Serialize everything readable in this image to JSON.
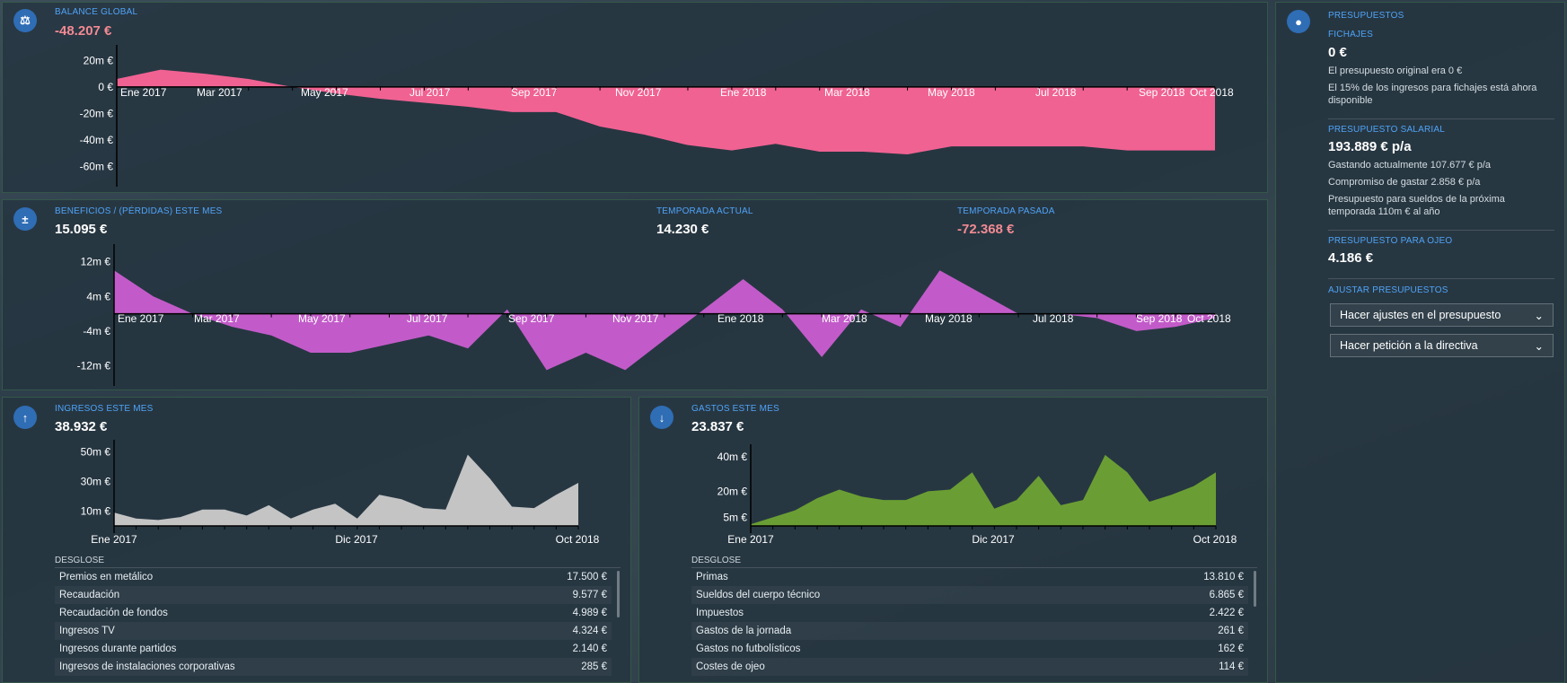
{
  "balance": {
    "caption": "BALANCE GLOBAL",
    "value": "-48.207 €",
    "y_labels": [
      "20m €",
      "0 €",
      "-20m €",
      "-40m €",
      "-60m €"
    ],
    "x_labels": [
      "Ene 2017",
      "Mar 2017",
      "May 2017",
      "Jul 2017",
      "Sep 2017",
      "Nov 2017",
      "Ene 2018",
      "Mar 2018",
      "May 2018",
      "Jul 2018",
      "Sep 2018",
      "Oct 2018"
    ]
  },
  "profit": {
    "caption": "BENEFICIOS / (PÉRDIDAS) ESTE MES",
    "value": "15.095 €",
    "current_caption": "TEMPORADA ACTUAL",
    "current_value": "14.230 €",
    "last_caption": "TEMPORADA PASADA",
    "last_value": "-72.368 €",
    "y_labels": [
      "12m €",
      "4m €",
      "-4m €",
      "-12m €"
    ],
    "x_labels": [
      "Ene 2017",
      "Mar 2017",
      "May 2017",
      "Jul 2017",
      "Sep 2017",
      "Nov 2017",
      "Ene 2018",
      "Mar 2018",
      "May 2018",
      "Jul 2018",
      "Sep 2018",
      "Oct 2018"
    ]
  },
  "income": {
    "caption": "INGRESOS ESTE MES",
    "value": "38.932 €",
    "y_labels": [
      "50m €",
      "30m €",
      "10m €"
    ],
    "x_labels": [
      "Ene 2017",
      "Dic 2017",
      "Oct 2018"
    ],
    "breakdown_title": "DESGLOSE",
    "rows": [
      {
        "label": "Premios en metálico",
        "value": "17.500 €"
      },
      {
        "label": "Recaudación",
        "value": "9.577 €"
      },
      {
        "label": "Recaudación de fondos",
        "value": "4.989 €"
      },
      {
        "label": "Ingresos TV",
        "value": "4.324 €"
      },
      {
        "label": "Ingresos durante partidos",
        "value": "2.140 €"
      },
      {
        "label": "Ingresos de instalaciones corporativas",
        "value": "285 €"
      }
    ]
  },
  "expenses": {
    "caption": "GASTOS ESTE MES",
    "value": "23.837 €",
    "y_labels": [
      "40m €",
      "20m €",
      "5m €"
    ],
    "x_labels": [
      "Ene 2017",
      "Dic 2017",
      "Oct 2018"
    ],
    "breakdown_title": "DESGLOSE",
    "rows": [
      {
        "label": "Primas",
        "value": "13.810 €"
      },
      {
        "label": "Sueldos del cuerpo técnico",
        "value": "6.865 €"
      },
      {
        "label": "Impuestos",
        "value": "2.422 €"
      },
      {
        "label": "Gastos de la jornada",
        "value": "261 €"
      },
      {
        "label": "Gastos no futbolísticos",
        "value": "162 €"
      },
      {
        "label": "Costes de ojeo",
        "value": "114 €"
      }
    ]
  },
  "budgets": {
    "caption": "PRESUPUESTOS",
    "transfers_caption": "FICHAJES",
    "transfers_value": "0 €",
    "transfers_note1": "El presupuesto original era 0 €",
    "transfers_note2": "El 15% de los ingresos para fichajes está ahora disponible",
    "wage_caption": "PRESUPUESTO SALARIAL",
    "wage_value": "193.889 € p/a",
    "wage_note1": "Gastando actualmente 107.677 € p/a",
    "wage_note2": "Compromiso de gastar 2.858 € p/a",
    "wage_note3": "Presupuesto para sueldos de la próxima temporada 110m € al año",
    "scout_caption": "PRESUPUESTO PARA OJEO",
    "scout_value": "4.186 €",
    "adjust_caption": "AJUSTAR PRESUPUESTOS",
    "dropdown1": "Hacer ajustes en el presupuesto",
    "dropdown2": "Hacer petición a la directiva"
  },
  "colors": {
    "balance_fill": "#f06292",
    "profit_fill": "#c25bc9",
    "income_fill": "#c4c4c4",
    "expenses_fill": "#6a9e34",
    "accent": "#4fa3f7",
    "negative": "#f28a93"
  },
  "chart_data": [
    {
      "type": "area",
      "name": "balance-chart",
      "title": "BALANCE GLOBAL",
      "x_range": [
        "Ene 2017",
        "Oct 2018"
      ],
      "ylim": [
        -70,
        25
      ],
      "y_unit": "m €",
      "values": [
        6,
        13,
        10,
        6,
        0,
        -5,
        -9,
        -12,
        -15,
        -19,
        -19,
        -30,
        -36,
        -44,
        -48,
        -43,
        -49,
        -49,
        -51,
        -45,
        -45,
        -45,
        -45,
        -48,
        -48,
        -48
      ]
    },
    {
      "type": "area",
      "name": "profit-chart",
      "title": "BENEFICIOS / (PÉRDIDAS) ESTE MES",
      "x_range": [
        "Ene 2017",
        "Oct 2018"
      ],
      "ylim": [
        -15,
        14
      ],
      "y_unit": "m €",
      "values": [
        10,
        4,
        0,
        -3,
        -5,
        -9,
        -9,
        -7,
        -5,
        -8,
        1,
        -13,
        -9,
        -13,
        -6,
        1,
        8,
        1,
        -10,
        1,
        -3,
        10,
        5,
        0,
        0,
        -1,
        -4,
        -3,
        -1
      ]
    },
    {
      "type": "area",
      "name": "income-chart",
      "title": "INGRESOS ESTE MES",
      "x_range": [
        "Ene 2017",
        "Oct 2018"
      ],
      "ylim": [
        0,
        52
      ],
      "y_unit": "m €",
      "values": [
        9,
        5,
        4,
        6,
        11,
        11,
        7,
        14,
        5,
        11,
        15,
        5,
        21,
        18,
        12,
        11,
        48,
        32,
        13,
        12,
        21,
        29
      ]
    },
    {
      "type": "area",
      "name": "expenses-chart",
      "title": "GASTOS ESTE MES",
      "x_range": [
        "Ene 2017",
        "Oct 2018"
      ],
      "ylim": [
        0,
        42
      ],
      "y_unit": "m €",
      "values": [
        1,
        5,
        9,
        16,
        21,
        17,
        15,
        15,
        20,
        21,
        31,
        10,
        15,
        29,
        12,
        15,
        41,
        31,
        14,
        18,
        23,
        31
      ]
    }
  ]
}
